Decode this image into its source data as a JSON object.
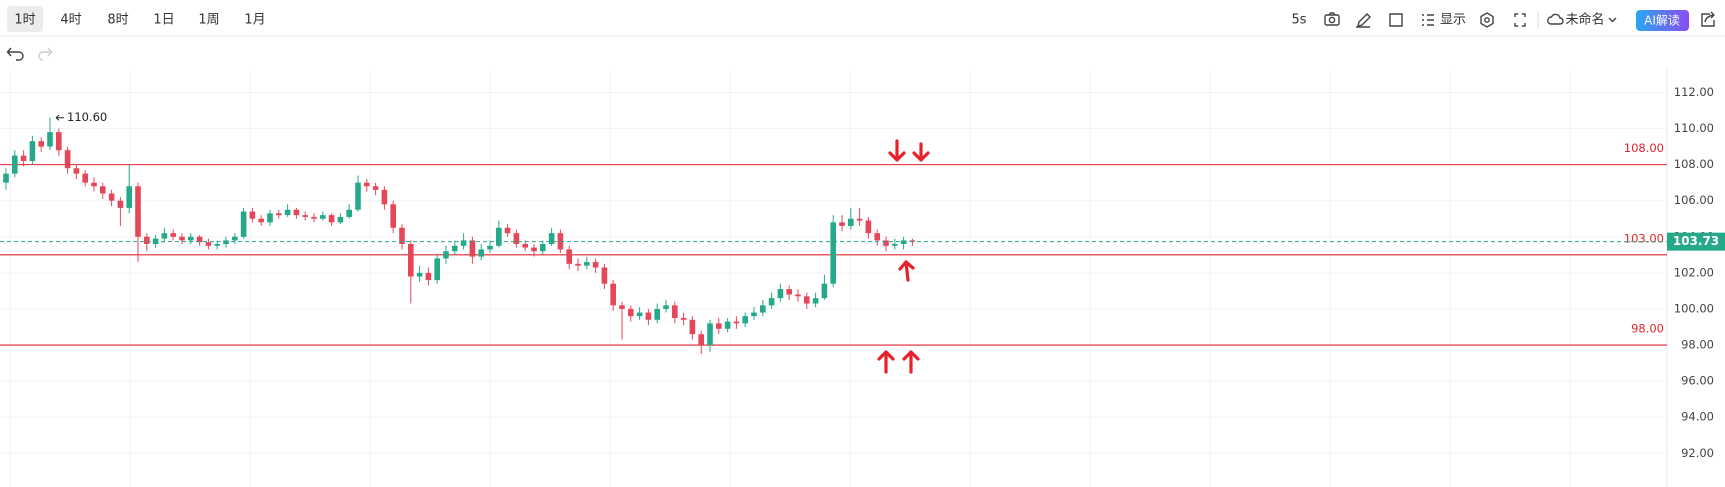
{
  "toolbar": {
    "intervals": [
      "1时",
      "4时",
      "8时",
      "1日",
      "1周",
      "1月"
    ],
    "selected": 0,
    "refresh": "5s",
    "display": "显示",
    "layout_name": "未命名",
    "ai_button": "AI解读"
  },
  "chart": {
    "type": "candlestick",
    "up_color": "#26a98b",
    "down_color": "#e5475a",
    "line_color": "#e0262f",
    "ylim": [
      90.13,
      113.3
    ],
    "yticks": [
      {
        "value": 112,
        "label": "112.00"
      },
      {
        "value": 110,
        "label": "110.00"
      },
      {
        "value": 108,
        "label": "108.00"
      },
      {
        "value": 106,
        "label": "106.00"
      },
      {
        "value": 104,
        "label": "104.00"
      },
      {
        "value": 102,
        "label": "102.00"
      },
      {
        "value": 100,
        "label": "100.00"
      },
      {
        "value": 98,
        "label": "98.00"
      },
      {
        "value": 96,
        "label": "96.00"
      },
      {
        "value": 94,
        "label": "94.00"
      },
      {
        "value": 92,
        "label": "92.00"
      }
    ],
    "price_lines": [
      {
        "value": 108,
        "label": "108.00"
      },
      {
        "value": 103,
        "label": "103.00"
      },
      {
        "value": 98,
        "label": "98.00"
      }
    ],
    "last_price": {
      "value": 103.73,
      "label": "103.73"
    },
    "high": {
      "value": 110.6,
      "label": "110.60"
    },
    "candles": [
      [
        107.0,
        107.8,
        106.6,
        107.5
      ],
      [
        107.5,
        108.8,
        107.3,
        108.5
      ],
      [
        108.5,
        108.8,
        107.9,
        108.2
      ],
      [
        108.2,
        109.6,
        108.0,
        109.3
      ],
      [
        109.3,
        109.5,
        108.7,
        109.0
      ],
      [
        109.0,
        110.6,
        108.8,
        109.8
      ],
      [
        109.8,
        110.0,
        108.5,
        108.8
      ],
      [
        108.8,
        109.0,
        107.5,
        107.8
      ],
      [
        107.8,
        108.0,
        107.2,
        107.5
      ],
      [
        107.5,
        107.7,
        106.8,
        107.0
      ],
      [
        107.0,
        107.3,
        106.5,
        106.8
      ],
      [
        106.8,
        107.0,
        106.1,
        106.4
      ],
      [
        106.4,
        106.6,
        105.7,
        106.0
      ],
      [
        106.0,
        106.2,
        104.6,
        105.6
      ],
      [
        105.6,
        108.0,
        105.3,
        106.8
      ],
      [
        106.8,
        107.0,
        102.6,
        104.0
      ],
      [
        104.0,
        104.2,
        103.2,
        103.6
      ],
      [
        103.6,
        104.1,
        103.4,
        103.9
      ],
      [
        103.9,
        104.5,
        103.7,
        104.2
      ],
      [
        104.2,
        104.4,
        103.8,
        104.0
      ],
      [
        104.0,
        104.2,
        103.6,
        103.8
      ],
      [
        103.8,
        104.2,
        103.6,
        104.0
      ],
      [
        104.0,
        104.1,
        103.5,
        103.7
      ],
      [
        103.7,
        103.9,
        103.3,
        103.5
      ],
      [
        103.5,
        103.8,
        103.3,
        103.6
      ],
      [
        103.6,
        104.0,
        103.4,
        103.8
      ],
      [
        103.8,
        104.2,
        103.6,
        104.0
      ],
      [
        104.0,
        105.6,
        103.9,
        105.4
      ],
      [
        105.4,
        105.6,
        104.8,
        105.0
      ],
      [
        105.0,
        105.2,
        104.6,
        104.8
      ],
      [
        104.8,
        105.5,
        104.6,
        105.3
      ],
      [
        105.3,
        105.5,
        105.0,
        105.2
      ],
      [
        105.2,
        105.8,
        105.1,
        105.5
      ],
      [
        105.5,
        105.6,
        105.0,
        105.2
      ],
      [
        105.2,
        105.4,
        104.9,
        105.1
      ],
      [
        105.1,
        105.3,
        104.8,
        105.0
      ],
      [
        105.0,
        105.4,
        104.9,
        105.2
      ],
      [
        105.2,
        105.3,
        104.6,
        104.8
      ],
      [
        104.8,
        105.3,
        104.7,
        105.1
      ],
      [
        105.1,
        105.8,
        105.0,
        105.5
      ],
      [
        105.5,
        107.4,
        105.4,
        107.0
      ],
      [
        107.0,
        107.2,
        106.5,
        106.8
      ],
      [
        106.8,
        107.0,
        106.3,
        106.6
      ],
      [
        106.6,
        106.8,
        105.5,
        105.8
      ],
      [
        105.8,
        106.0,
        104.2,
        104.5
      ],
      [
        104.5,
        104.7,
        103.3,
        103.6
      ],
      [
        103.6,
        103.8,
        100.3,
        101.8
      ],
      [
        101.8,
        102.4,
        101.5,
        102.0
      ],
      [
        102.0,
        102.3,
        101.3,
        101.6
      ],
      [
        101.6,
        103.0,
        101.4,
        102.8
      ],
      [
        102.8,
        103.5,
        102.5,
        103.2
      ],
      [
        103.2,
        103.8,
        103.0,
        103.5
      ],
      [
        103.5,
        104.2,
        103.3,
        103.8
      ],
      [
        103.8,
        104.0,
        102.5,
        102.9
      ],
      [
        102.9,
        103.6,
        102.7,
        103.3
      ],
      [
        103.3,
        103.8,
        103.1,
        103.5
      ],
      [
        103.5,
        104.9,
        103.4,
        104.5
      ],
      [
        104.5,
        104.7,
        104.0,
        104.2
      ],
      [
        104.2,
        104.4,
        103.4,
        103.6
      ],
      [
        103.6,
        103.8,
        103.2,
        103.4
      ],
      [
        103.4,
        103.6,
        102.9,
        103.2
      ],
      [
        103.2,
        103.8,
        103.0,
        103.6
      ],
      [
        103.6,
        104.5,
        103.5,
        104.2
      ],
      [
        104.2,
        104.4,
        103.1,
        103.3
      ],
      [
        103.3,
        103.5,
        102.2,
        102.5
      ],
      [
        102.5,
        102.8,
        102.1,
        102.4
      ],
      [
        102.4,
        102.9,
        102.2,
        102.6
      ],
      [
        102.6,
        102.8,
        102.0,
        102.3
      ],
      [
        102.3,
        102.5,
        101.1,
        101.4
      ],
      [
        101.4,
        101.6,
        99.9,
        100.2
      ],
      [
        100.2,
        100.4,
        98.3,
        100.0
      ],
      [
        100.0,
        100.2,
        99.3,
        99.6
      ],
      [
        99.6,
        100.1,
        99.4,
        99.8
      ],
      [
        99.8,
        100.0,
        99.1,
        99.4
      ],
      [
        99.4,
        100.3,
        99.2,
        100.0
      ],
      [
        100.0,
        100.5,
        99.8,
        100.2
      ],
      [
        100.2,
        100.4,
        99.2,
        99.5
      ],
      [
        99.5,
        99.8,
        99.1,
        99.4
      ],
      [
        99.4,
        99.6,
        98.3,
        98.6
      ],
      [
        98.6,
        98.8,
        97.5,
        98.0
      ],
      [
        98.0,
        99.4,
        97.6,
        99.2
      ],
      [
        99.2,
        99.5,
        98.6,
        98.9
      ],
      [
        98.9,
        99.5,
        98.7,
        99.3
      ],
      [
        99.3,
        99.6,
        98.9,
        99.2
      ],
      [
        99.2,
        99.8,
        99.0,
        99.6
      ],
      [
        99.6,
        100.1,
        99.4,
        99.8
      ],
      [
        99.8,
        100.5,
        99.6,
        100.2
      ],
      [
        100.2,
        100.9,
        100.0,
        100.6
      ],
      [
        100.6,
        101.4,
        100.4,
        101.1
      ],
      [
        101.1,
        101.3,
        100.5,
        100.8
      ],
      [
        100.8,
        101.1,
        100.4,
        100.7
      ],
      [
        100.7,
        100.9,
        100.0,
        100.3
      ],
      [
        100.3,
        100.9,
        100.1,
        100.6
      ],
      [
        100.6,
        101.9,
        100.5,
        101.4
      ],
      [
        101.4,
        105.2,
        101.2,
        104.8
      ],
      [
        104.8,
        105.2,
        104.3,
        104.6
      ],
      [
        104.6,
        105.6,
        104.4,
        105.0
      ],
      [
        105.0,
        105.6,
        104.6,
        104.9
      ],
      [
        104.9,
        105.1,
        103.9,
        104.2
      ],
      [
        104.2,
        104.4,
        103.5,
        103.8
      ],
      [
        103.8,
        104.0,
        103.2,
        103.5
      ],
      [
        103.5,
        103.9,
        103.3,
        103.6
      ],
      [
        103.6,
        104.0,
        103.3,
        103.8
      ],
      [
        103.8,
        103.9,
        103.5,
        103.73
      ]
    ]
  }
}
